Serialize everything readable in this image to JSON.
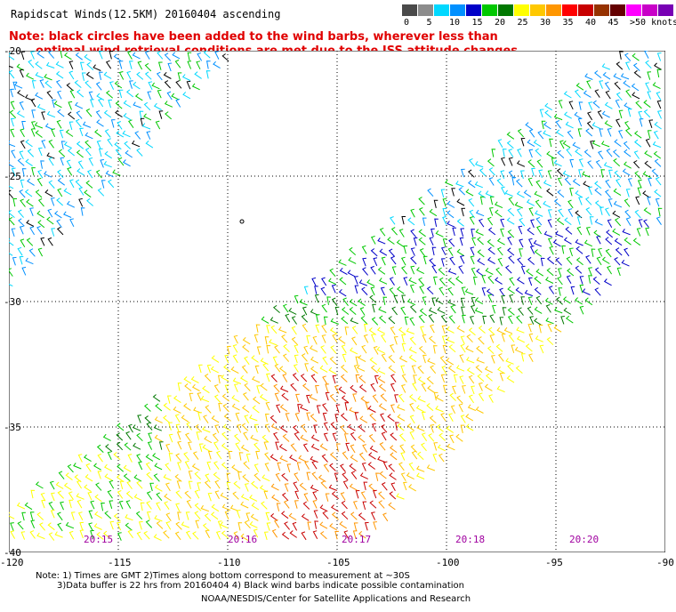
{
  "title": "Rapidscat Winds(12.5KM) 20160404 ascending",
  "note_line1": "Note: black circles have been added to the wind barbs, wherever less than",
  "note_line2": "optimal wind retrieval conditions are met due to the ISS attitude changes.",
  "legend": {
    "unit": ">50 knots",
    "labels": [
      "0",
      "5",
      "10",
      "15",
      "20",
      "25",
      "30",
      "35",
      "40",
      "45"
    ],
    "colors": [
      "#4a4a4a",
      "#8c8c8c",
      "#00d8ff",
      "#0090ff",
      "#0000c8",
      "#00c800",
      "#007800",
      "#ffff00",
      "#ffc800",
      "#ff9600",
      "#ff0000",
      "#c80000",
      "#963200",
      "#640000",
      "#ff00ff",
      "#c800c8",
      "#7800b4"
    ]
  },
  "axes": {
    "lat_labels": [
      "-20",
      "-25",
      "-30",
      "-35",
      "-40"
    ],
    "lon_labels": [
      "-120",
      "-115",
      "-110",
      "-105",
      "-100",
      "-95",
      "-90"
    ]
  },
  "times": [
    "20:15",
    "20:16",
    "20:17",
    "20:18",
    "20:20"
  ],
  "footer": {
    "line1": "Note: 1) Times are GMT 2)Times along bottom correspond to measurement at ~30S",
    "line2": "3)Data buffer is 22 hrs from 20160404 4) Black wind barbs indicate possible contamination",
    "line3": "NOAA/NESDIS/Center for Satellite Applications and Research"
  },
  "colors": {
    "note": "#e00000",
    "time_labels": "#a000a0"
  }
}
